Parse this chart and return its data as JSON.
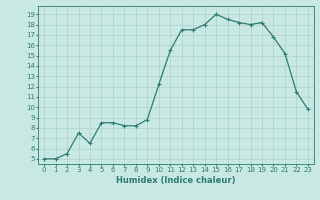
{
  "x": [
    0,
    1,
    2,
    3,
    4,
    5,
    6,
    7,
    8,
    9,
    10,
    11,
    12,
    13,
    14,
    15,
    16,
    17,
    18,
    19,
    20,
    21,
    22,
    23
  ],
  "y": [
    5,
    5,
    5.5,
    7.5,
    6.5,
    8.5,
    8.5,
    8.2,
    8.2,
    8.8,
    12.2,
    15.5,
    17.5,
    17.5,
    18,
    19,
    18.5,
    18.2,
    18,
    18.2,
    16.8,
    15.2,
    11.5,
    9.8
  ],
  "line_color": "#2e7d70",
  "marker": "+",
  "marker_size": 3,
  "background_color": "#c8e8e4",
  "grid_color": "#a8ccc8",
  "xlabel": "Humidex (Indice chaleur)",
  "xlim": [
    -0.5,
    23.5
  ],
  "ylim": [
    4.5,
    19.8
  ],
  "yticks": [
    5,
    6,
    7,
    8,
    9,
    10,
    11,
    12,
    13,
    14,
    15,
    16,
    17,
    18,
    19
  ],
  "xticks": [
    0,
    1,
    2,
    3,
    4,
    5,
    6,
    7,
    8,
    9,
    10,
    11,
    12,
    13,
    14,
    15,
    16,
    17,
    18,
    19,
    20,
    21,
    22,
    23
  ],
  "tick_color": "#2e7d70",
  "label_fontsize": 6,
  "tick_fontsize": 5,
  "linewidth": 0.9,
  "marker_edge_width": 0.8
}
